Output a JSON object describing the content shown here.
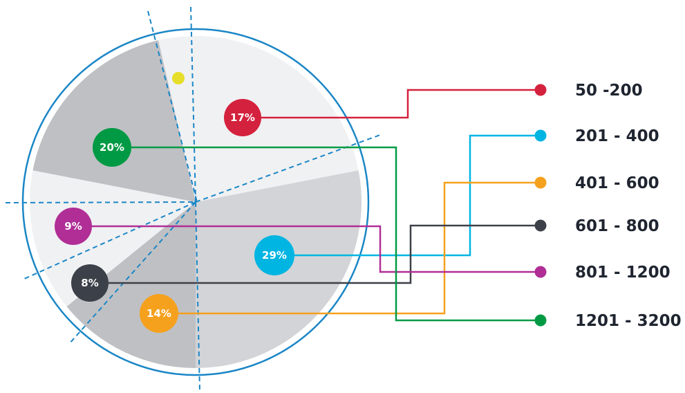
{
  "chart_data": {
    "type": "pie",
    "legend_position": "right",
    "slices": [
      {
        "category": "50 -200",
        "pct_label": "17%",
        "value": 17,
        "color": "#d4213d"
      },
      {
        "category": "201 - 400",
        "pct_label": "29%",
        "value": 29,
        "color": "#00b5e2"
      },
      {
        "category": "401 - 600",
        "pct_label": "14%",
        "value": 14,
        "color": "#f5a11d"
      },
      {
        "category": "601 - 800",
        "pct_label": "8%",
        "value": 8,
        "color": "#3c4048"
      },
      {
        "category": "801 - 1200",
        "pct_label": "9%",
        "value": 9,
        "color": "#b02e96"
      },
      {
        "category": "1201 - 3200",
        "pct_label": "20%",
        "value": 20,
        "color": "#009a44"
      }
    ],
    "colors": {
      "outline": "#1a86c6",
      "sector_light": "#f0f1f3",
      "sector_mid": "#d3d4d7",
      "sector_dark": "#bfc0c4",
      "marker": "#e6de2a"
    }
  }
}
